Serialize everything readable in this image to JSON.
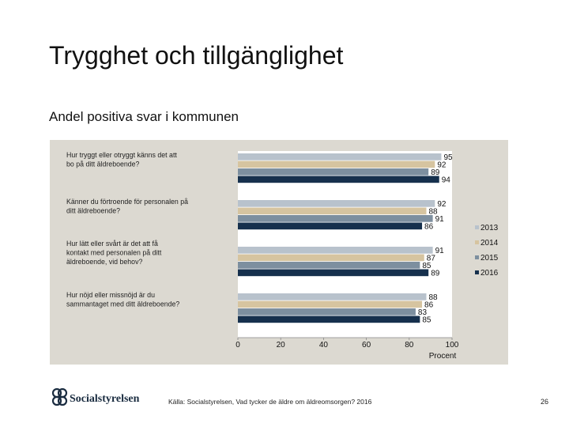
{
  "slide": {
    "title": "Trygghet och tillgänglighet",
    "subtitle": "Andel positiva svar i kommunen",
    "source": "Källa: Socialstyrelsen, Vad tycker de äldre om äldreomsorgen? 2016",
    "page_number": "26",
    "logo_text": "Socialstyrelsen"
  },
  "chart_data": {
    "type": "bar",
    "orientation": "horizontal",
    "categories": [
      "Hur tryggt eller otryggt känns det att bo på ditt äldreboende?",
      "Känner du förtroende för personalen på ditt äldreboende?",
      "Hur lätt eller svårt är det att få kontakt med personalen på ditt äldreboende, vid behov?",
      "Hur nöjd eller missnöjd är du sammantaget med ditt äldreboende?"
    ],
    "series": [
      {
        "name": "2013",
        "color": "#b8c2cc",
        "values": [
          95,
          92,
          91,
          88
        ]
      },
      {
        "name": "2014",
        "color": "#d6c4a0",
        "values": [
          92,
          88,
          87,
          86
        ]
      },
      {
        "name": "2015",
        "color": "#7d8f9f",
        "values": [
          89,
          91,
          85,
          83
        ]
      },
      {
        "name": "2016",
        "color": "#16304d",
        "values": [
          94,
          86,
          89,
          85
        ]
      }
    ],
    "xlim": [
      0,
      100
    ],
    "xticks": [
      "0",
      "20",
      "40",
      "60",
      "80",
      "100"
    ],
    "xlabel": "Procent",
    "legend_position": "right",
    "plot_background": "#ffffff",
    "panel_background": "#dcd9d1"
  }
}
